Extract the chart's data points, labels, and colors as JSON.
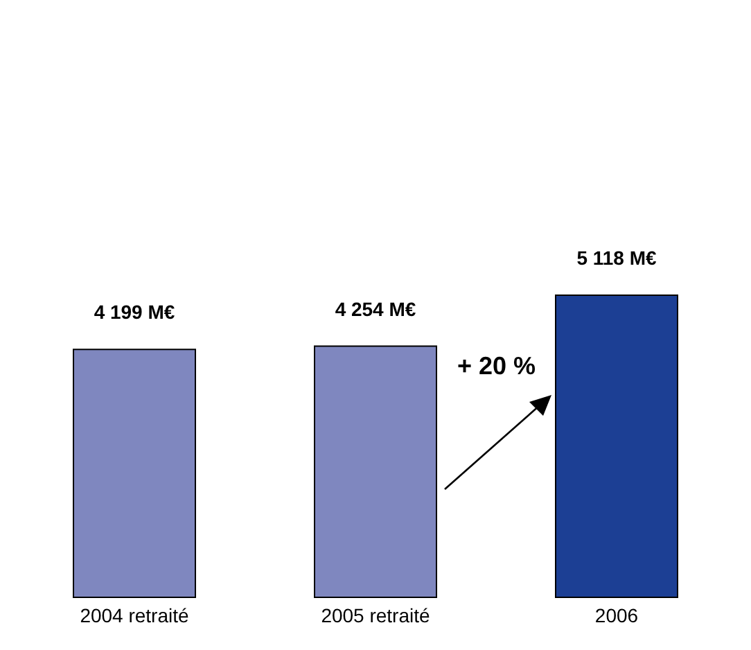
{
  "chart_data": {
    "type": "bar",
    "categories": [
      "2004 retraité",
      "2005 retraité",
      "2006"
    ],
    "values": [
      4199,
      4254,
      5118
    ],
    "colors": [
      "#7f87bf",
      "#7f87bf",
      "#1c3f94"
    ],
    "value_labels": [
      "4 199 M€",
      "4 254 M€",
      "5 118 M€"
    ],
    "annotations": [
      "+ 20 %"
    ]
  }
}
